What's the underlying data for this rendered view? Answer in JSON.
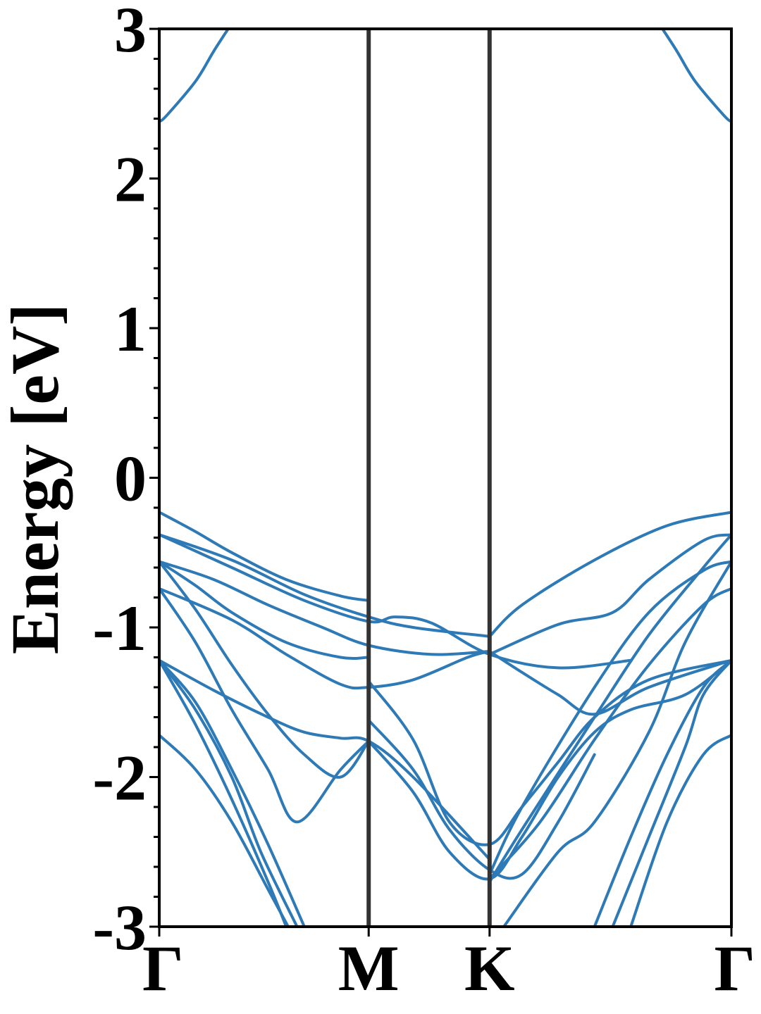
{
  "chart_data": {
    "type": "line",
    "title": "",
    "xlabel": "",
    "ylabel": "Energy [eV]",
    "ylim": [
      -3,
      3
    ],
    "yticks": [
      "3",
      "2",
      "1",
      "0",
      "-1",
      "-2",
      "-3"
    ],
    "ytick_values": [
      3,
      2,
      1,
      0,
      -1,
      -2,
      -3
    ],
    "xticks": [
      "Γ",
      "M",
      "K",
      "Γ"
    ],
    "xtick_positions": [
      0,
      0.5774,
      0.9107,
      1.5774
    ],
    "grid": false,
    "legend": "none",
    "line_color": "#2e7ab6",
    "divider_color": "#333333",
    "series": [
      {
        "x": [
          0,
          0.1,
          0.2,
          0.35,
          0.5,
          0.5774
        ],
        "y": [
          -0.23,
          -0.36,
          -0.5,
          -0.68,
          -0.79,
          -0.82
        ]
      },
      {
        "x": [
          0,
          0.2,
          0.4,
          0.5774,
          0.7,
          0.9107
        ],
        "y": [
          -0.38,
          -0.55,
          -0.78,
          -0.93,
          -1.0,
          -1.06
        ]
      },
      {
        "x": [
          0,
          0.2,
          0.4,
          0.5774,
          0.65,
          0.75,
          0.9107,
          1.1,
          1.3
        ],
        "y": [
          -0.38,
          -0.6,
          -0.82,
          -0.96,
          -0.93,
          -0.97,
          -1.18,
          -1.27,
          -1.22
        ]
      },
      {
        "x": [
          0,
          0.15,
          0.3,
          0.45,
          0.5774,
          0.75,
          0.9107
        ],
        "y": [
          -0.56,
          -0.68,
          -0.85,
          -1.0,
          -1.12,
          -1.18,
          -1.16
        ]
      },
      {
        "x": [
          0,
          0.1,
          0.2,
          0.35,
          0.5,
          0.5774
        ],
        "y": [
          -0.56,
          -0.72,
          -0.9,
          -1.1,
          -1.2,
          -1.2
        ]
      },
      {
        "x": [
          0,
          0.2,
          0.35,
          0.5,
          0.5774,
          0.7,
          0.85,
          0.9107
        ],
        "y": [
          -0.74,
          -0.95,
          -1.18,
          -1.38,
          -1.4,
          -1.35,
          -1.2,
          -1.16
        ]
      },
      {
        "x": [
          0,
          0.15,
          0.3,
          0.4,
          0.5,
          0.5774,
          0.7,
          0.9107
        ],
        "y": [
          -1.22,
          -1.42,
          -1.6,
          -1.7,
          -1.74,
          -1.76,
          -2.0,
          -2.55
        ]
      },
      {
        "x": [
          0,
          0.1,
          0.2,
          0.3,
          0.4,
          0.5,
          0.5774
        ],
        "y": [
          -0.56,
          -0.88,
          -1.25,
          -1.58,
          -1.85,
          -2.0,
          -1.76
        ]
      },
      {
        "x": [
          0,
          0.1,
          0.2,
          0.3,
          0.38,
          0.5,
          0.5774
        ],
        "y": [
          -0.74,
          -1.1,
          -1.55,
          -1.95,
          -2.3,
          -1.95,
          -1.76
        ]
      },
      {
        "x": [
          0,
          0.1,
          0.2,
          0.3,
          0.35
        ],
        "y": [
          -1.22,
          -1.65,
          -2.15,
          -2.7,
          -3.0
        ]
      },
      {
        "x": [
          0,
          0.1,
          0.2,
          0.28,
          0.38
        ],
        "y": [
          -1.22,
          -1.55,
          -2.0,
          -2.5,
          -3.0
        ]
      },
      {
        "x": [
          0,
          0.1,
          0.2,
          0.3,
          0.4
        ],
        "y": [
          -1.22,
          -1.5,
          -1.95,
          -2.45,
          -3.0
        ]
      },
      {
        "x": [
          0,
          0.1,
          0.2,
          0.3,
          0.4
        ],
        "y": [
          -1.72,
          -1.95,
          -2.3,
          -2.75,
          -3.2
        ]
      },
      {
        "x": [
          0.5774,
          0.7,
          0.8,
          0.9107,
          1.0,
          1.1,
          1.2
        ],
        "y": [
          -1.62,
          -1.95,
          -2.35,
          -2.62,
          -2.65,
          -2.3,
          -1.85
        ]
      },
      {
        "x": [
          0.5774,
          0.7,
          0.8,
          0.9107,
          1.0,
          1.1,
          1.2,
          1.3,
          1.45,
          1.5774
        ],
        "y": [
          -1.76,
          -2.1,
          -2.5,
          -2.68,
          -2.4,
          -2.0,
          -1.7,
          -1.55,
          -1.45,
          -1.22
        ]
      },
      {
        "x": [
          0.5774,
          0.7,
          0.8,
          0.9107,
          1.0,
          1.1,
          1.2,
          1.35,
          1.5774
        ],
        "y": [
          -1.36,
          -1.75,
          -2.3,
          -2.45,
          -2.2,
          -1.9,
          -1.6,
          -1.35,
          -1.22
        ]
      },
      {
        "x": [
          0.9107,
          1.0,
          1.1,
          1.2,
          1.35,
          1.5774
        ],
        "y": [
          -1.16,
          -1.3,
          -1.45,
          -1.58,
          -1.4,
          -1.22
        ]
      },
      {
        "x": [
          0.9107,
          1.0,
          1.2,
          1.4,
          1.5774
        ],
        "y": [
          -1.06,
          -0.85,
          -0.55,
          -0.32,
          -0.23
        ]
      },
      {
        "x": [
          0.9107,
          1.1,
          1.25,
          1.35,
          1.5,
          1.5774
        ],
        "y": [
          -1.18,
          -0.98,
          -0.9,
          -0.68,
          -0.42,
          -0.38
        ]
      },
      {
        "x": [
          0.9107,
          1.0,
          1.2,
          1.35,
          1.5,
          1.5774
        ],
        "y": [
          -2.7,
          -2.35,
          -1.6,
          -1.05,
          -0.6,
          -0.38
        ]
      },
      {
        "x": [
          0.9107,
          1.0,
          1.2,
          1.35,
          1.5,
          1.5774
        ],
        "y": [
          -2.65,
          -2.2,
          -1.4,
          -0.9,
          -0.62,
          -0.56
        ]
      },
      {
        "x": [
          0.9107,
          1.05,
          1.2,
          1.35,
          1.5,
          1.5774
        ],
        "y": [
          -2.68,
          -2.3,
          -1.75,
          -1.25,
          -0.85,
          -0.74
        ]
      },
      {
        "x": [
          0.95,
          1.1,
          1.2,
          1.35,
          1.45,
          1.5774
        ],
        "y": [
          -3.0,
          -2.5,
          -2.3,
          -1.7,
          -1.1,
          -0.56
        ]
      },
      {
        "x": [
          1.2,
          1.3,
          1.4,
          1.5,
          1.5774
        ],
        "y": [
          -3.0,
          -2.4,
          -1.85,
          -1.4,
          -1.22
        ]
      },
      {
        "x": [
          1.25,
          1.35,
          1.45,
          1.5,
          1.5774
        ],
        "y": [
          -3.0,
          -2.4,
          -1.8,
          -1.45,
          -1.22
        ]
      },
      {
        "x": [
          1.3,
          1.4,
          1.5,
          1.5774
        ],
        "y": [
          -3.0,
          -2.3,
          -1.85,
          -1.72
        ]
      },
      {
        "x": [
          0,
          0.02,
          0.1,
          0.15,
          0.19
        ],
        "y": [
          2.38,
          2.42,
          2.65,
          2.85,
          3.0
        ]
      },
      {
        "x": [
          1.3874,
          1.4274,
          1.4774,
          1.5574,
          1.5774
        ],
        "y": [
          3.0,
          2.85,
          2.65,
          2.42,
          2.38
        ]
      }
    ]
  }
}
